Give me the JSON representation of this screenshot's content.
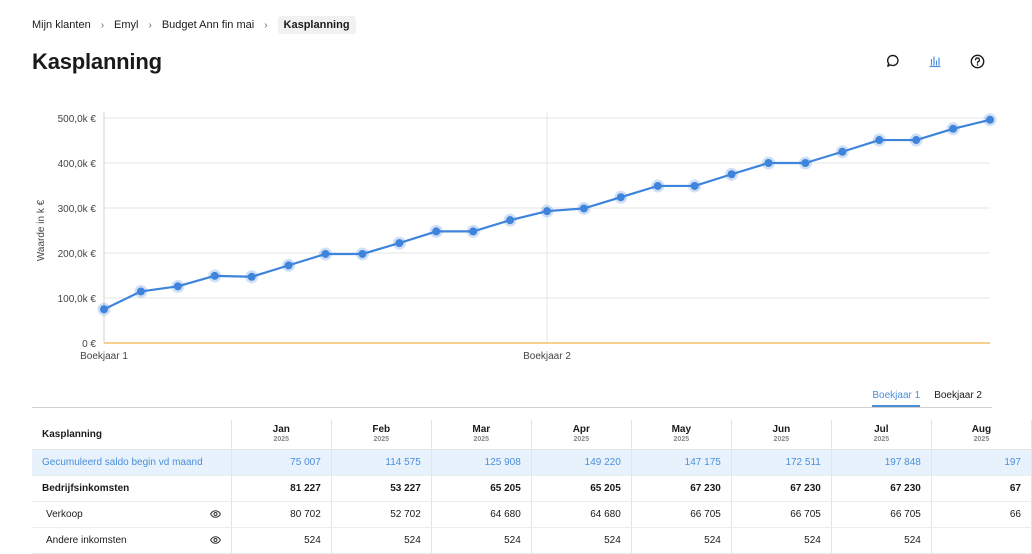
{
  "breadcrumb": [
    {
      "label": "Mijn klanten"
    },
    {
      "label": "Emyl"
    },
    {
      "label": "Budget Ann fin mai"
    },
    {
      "label": "Kasplanning"
    }
  ],
  "page": {
    "title": "Kasplanning"
  },
  "toolbar": {
    "icons": [
      "comment-icon",
      "chart-icon",
      "help-icon"
    ],
    "active_color": "#4a8fdc"
  },
  "colors": {
    "line": "#3f84dc",
    "point": "#3f84dc",
    "zero_line": "#f0b44c",
    "grid": "#e6e6e6"
  },
  "chart_data": {
    "type": "line",
    "ylabel": "Waarde in k €",
    "ylim": [
      0,
      500000
    ],
    "yticks": [
      {
        "value": 0,
        "label": "0 €"
      },
      {
        "value": 100000,
        "label": "100,0k €"
      },
      {
        "value": 200000,
        "label": "200,0k €"
      },
      {
        "value": 300000,
        "label": "300,0k €"
      },
      {
        "value": 400000,
        "label": "400,0k €"
      },
      {
        "value": 500000,
        "label": "500,0k €"
      }
    ],
    "xlabels": [
      {
        "index": 0,
        "label": "Boekjaar 1"
      },
      {
        "index": 12,
        "label": "Boekjaar 2"
      }
    ],
    "grid": true,
    "series": [
      {
        "values": [
          75007,
          114575,
          125908,
          149220,
          147175,
          172511,
          197848,
          197848,
          222000,
          248000,
          248000,
          273000,
          293000,
          299000,
          324000,
          349000,
          349000,
          375000,
          400000,
          400000,
          425000,
          451000,
          451000,
          476000,
          496000
        ]
      }
    ]
  },
  "tabs": [
    {
      "label": "Boekjaar 1",
      "active": true
    },
    {
      "label": "Boekjaar 2",
      "active": false
    }
  ],
  "table": {
    "header_label": "Kasplanning",
    "months": [
      {
        "name": "Jan",
        "year": "2025"
      },
      {
        "name": "Feb",
        "year": "2025"
      },
      {
        "name": "Mar",
        "year": "2025"
      },
      {
        "name": "Apr",
        "year": "2025"
      },
      {
        "name": "May",
        "year": "2025"
      },
      {
        "name": "Jun",
        "year": "2025"
      },
      {
        "name": "Jul",
        "year": "2025"
      },
      {
        "name": "Aug",
        "year": "2025"
      }
    ],
    "rows": [
      {
        "label": "Gecumuleerd saldo begin vd maand",
        "style": "cumul",
        "eye": false,
        "values": [
          "75 007",
          "114 575",
          "125 908",
          "149 220",
          "147 175",
          "172 511",
          "197 848",
          "197"
        ]
      },
      {
        "label": "Bedrijfsinkomsten",
        "style": "bold",
        "eye": false,
        "values": [
          "81 227",
          "53 227",
          "65 205",
          "65 205",
          "67 230",
          "67 230",
          "67 230",
          "67"
        ]
      },
      {
        "label": "Verkoop",
        "style": "sub",
        "eye": true,
        "values": [
          "80 702",
          "52 702",
          "64 680",
          "64 680",
          "66 705",
          "66 705",
          "66 705",
          "66"
        ]
      },
      {
        "label": "Andere inkomsten",
        "style": "sub",
        "eye": true,
        "values": [
          "524",
          "524",
          "524",
          "524",
          "524",
          "524",
          "524",
          ""
        ]
      }
    ]
  }
}
